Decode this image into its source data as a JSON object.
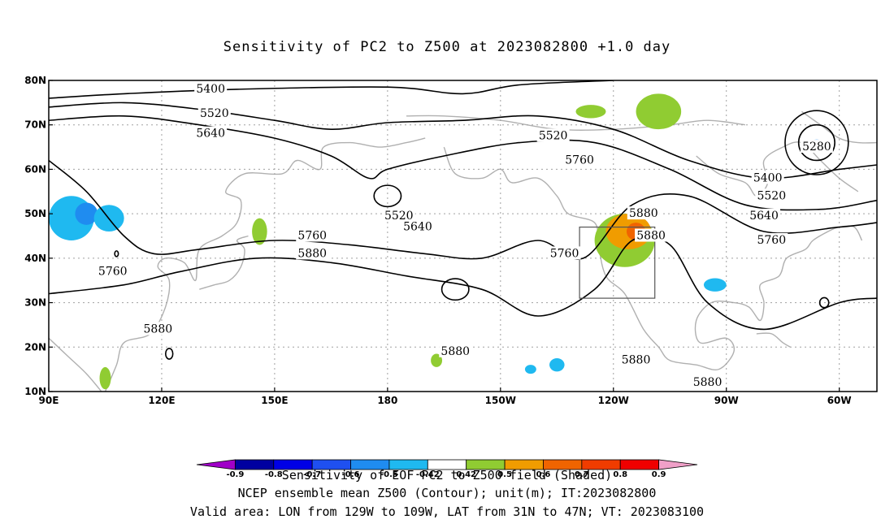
{
  "title": "Sensitivity of PC2 to Z500 at 2023082800 +1.0 day",
  "map": {
    "lon_range": [
      90,
      310
    ],
    "lat_range": [
      10,
      80
    ],
    "lat_ticks": [
      {
        "value": 80,
        "label": "80N"
      },
      {
        "value": 70,
        "label": "70N"
      },
      {
        "value": 60,
        "label": "60N"
      },
      {
        "value": 50,
        "label": "50N"
      },
      {
        "value": 40,
        "label": "40N"
      },
      {
        "value": 30,
        "label": "30N"
      },
      {
        "value": 20,
        "label": "20N"
      },
      {
        "value": 10,
        "label": "10N"
      }
    ],
    "lon_ticks": [
      {
        "value": 90,
        "label": "90E"
      },
      {
        "value": 120,
        "label": "120E"
      },
      {
        "value": 150,
        "label": "150E"
      },
      {
        "value": 180,
        "label": "180"
      },
      {
        "value": 210,
        "label": "150W"
      },
      {
        "value": 240,
        "label": "120W"
      },
      {
        "value": 270,
        "label": "90W"
      },
      {
        "value": 300,
        "label": "60W"
      }
    ],
    "valid_box": {
      "lon": [
        231,
        251
      ],
      "lat": [
        31,
        47
      ]
    },
    "contours": [
      {
        "value": 5400,
        "points": [
          [
            90,
            76
          ],
          [
            110,
            77
          ],
          [
            140,
            78
          ],
          [
            180,
            78.5
          ],
          [
            200,
            77
          ],
          [
            215,
            79
          ],
          [
            240,
            80
          ]
        ]
      },
      {
        "value": 5520,
        "points": [
          [
            90,
            74
          ],
          [
            110,
            75
          ],
          [
            130,
            73.5
          ],
          [
            150,
            71
          ],
          [
            165,
            69
          ],
          [
            180,
            70.5
          ],
          [
            200,
            71
          ],
          [
            220,
            72
          ],
          [
            240,
            69
          ],
          [
            260,
            62
          ],
          [
            280,
            58
          ],
          [
            300,
            60
          ],
          [
            310,
            61
          ]
        ]
      },
      {
        "value": 5640,
        "points": [
          [
            90,
            71
          ],
          [
            110,
            72
          ],
          [
            130,
            70
          ],
          [
            150,
            67
          ],
          [
            165,
            63
          ],
          [
            175,
            58
          ],
          [
            180,
            60
          ],
          [
            195,
            63
          ],
          [
            215,
            66
          ],
          [
            235,
            66
          ],
          [
            255,
            60
          ],
          [
            275,
            52
          ],
          [
            295,
            51
          ],
          [
            310,
            53
          ]
        ]
      },
      {
        "value": 5760,
        "points": [
          [
            90,
            62
          ],
          [
            100,
            55
          ],
          [
            110,
            45
          ],
          [
            118,
            41
          ],
          [
            130,
            42
          ],
          [
            150,
            44
          ],
          [
            170,
            43
          ],
          [
            190,
            41
          ],
          [
            205,
            40
          ],
          [
            220,
            44
          ],
          [
            232,
            40
          ],
          [
            245,
            52
          ],
          [
            260,
            54
          ],
          [
            280,
            46
          ],
          [
            300,
            47
          ],
          [
            310,
            48
          ]
        ]
      },
      {
        "value": 5880,
        "points": [
          [
            90,
            32
          ],
          [
            110,
            34
          ],
          [
            125,
            37
          ],
          [
            145,
            40
          ],
          [
            165,
            39
          ],
          [
            185,
            36
          ],
          [
            205,
            33
          ],
          [
            220,
            27
          ],
          [
            235,
            33
          ],
          [
            245,
            44
          ],
          [
            255,
            43
          ],
          [
            265,
            30
          ],
          [
            280,
            24
          ],
          [
            300,
            30
          ],
          [
            310,
            31
          ]
        ]
      }
    ],
    "contour_labels": [
      {
        "text": "5400",
        "lon": 133,
        "lat": 78
      },
      {
        "text": "5520",
        "lon": 134,
        "lat": 72.5
      },
      {
        "text": "5640",
        "lon": 133,
        "lat": 68
      },
      {
        "text": "5520",
        "lon": 224,
        "lat": 67.5
      },
      {
        "text": "5280",
        "lon": 294,
        "lat": 65
      },
      {
        "text": "5760",
        "lon": 231,
        "lat": 62
      },
      {
        "text": "5400",
        "lon": 281,
        "lat": 58
      },
      {
        "text": "5520",
        "lon": 282,
        "lat": 54
      },
      {
        "text": "5640",
        "lon": 280,
        "lat": 49.5
      },
      {
        "text": "5520",
        "lon": 183,
        "lat": 49.5
      },
      {
        "text": "5640",
        "lon": 188,
        "lat": 47
      },
      {
        "text": "5880",
        "lon": 248,
        "lat": 50
      },
      {
        "text": "5880",
        "lon": 250,
        "lat": 45
      },
      {
        "text": "5760",
        "lon": 160,
        "lat": 45
      },
      {
        "text": "5760",
        "lon": 282,
        "lat": 44
      },
      {
        "text": "5880",
        "lon": 160,
        "lat": 41
      },
      {
        "text": "5760",
        "lon": 227,
        "lat": 41
      },
      {
        "text": "5760",
        "lon": 107,
        "lat": 37
      },
      {
        "text": "5880",
        "lon": 119,
        "lat": 24
      },
      {
        "text": "5880",
        "lon": 198,
        "lat": 19
      },
      {
        "text": "5880",
        "lon": 246,
        "lat": 17
      },
      {
        "text": "5880",
        "lon": 265,
        "lat": 12
      }
    ],
    "shaded_patches": [
      {
        "color": "#1fb9f0",
        "lon": 96,
        "lat": 49,
        "rx": 6,
        "ry": 5
      },
      {
        "color": "#1f8cf0",
        "lon": 100,
        "lat": 50,
        "rx": 3,
        "ry": 2.5
      },
      {
        "color": "#1fb9f0",
        "lon": 106,
        "lat": 49,
        "rx": 4,
        "ry": 3
      },
      {
        "color": "#90cc32",
        "lon": 252,
        "lat": 73,
        "rx": 6,
        "ry": 4
      },
      {
        "color": "#90cc32",
        "lon": 234,
        "lat": 73,
        "rx": 4,
        "ry": 1.5
      },
      {
        "color": "#90cc32",
        "lon": 243,
        "lat": 44,
        "rx": 8,
        "ry": 6
      },
      {
        "color": "#f09c00",
        "lon": 244,
        "lat": 46,
        "rx": 6,
        "ry": 4
      },
      {
        "color": "#f06400",
        "lon": 246,
        "lat": 46,
        "rx": 2.5,
        "ry": 2
      },
      {
        "color": "#90cc32",
        "lon": 146,
        "lat": 46,
        "rx": 2,
        "ry": 3
      },
      {
        "color": "#1fb9f0",
        "lon": 225,
        "lat": 16,
        "rx": 2,
        "ry": 1.5
      },
      {
        "color": "#1fb9f0",
        "lon": 218,
        "lat": 15,
        "rx": 1.5,
        "ry": 1
      },
      {
        "color": "#90cc32",
        "lon": 193,
        "lat": 17,
        "rx": 1.5,
        "ry": 1.5
      },
      {
        "color": "#90cc32",
        "lon": 105,
        "lat": 13,
        "rx": 1.5,
        "ry": 2.5
      },
      {
        "color": "#1fb9f0",
        "lon": 267,
        "lat": 34,
        "rx": 3,
        "ry": 1.5
      },
      {
        "color": "#1f8cf0",
        "lon": 294,
        "lat": 66,
        "rx": 1.5,
        "ry": 0.7
      }
    ]
  },
  "colorbar": {
    "colors": [
      "#a000c8",
      "#0000a0",
      "#0000e6",
      "#1f50f0",
      "#1f8cf0",
      "#1fb9f0",
      "#ffffff",
      "#90cc32",
      "#f09c00",
      "#f06400",
      "#f03c00",
      "#f00000",
      "#f0a0c8"
    ],
    "labels": [
      "-0.9",
      "-0.8",
      "-0.7",
      "-0.6",
      "-0.5",
      "-0.42",
      "0.42",
      "0.5",
      "0.6",
      "0.7",
      "0.8",
      "0.9"
    ]
  },
  "footer": {
    "caption": "Sensitivity of EOF PC2 to Z500 field (Shaded)",
    "line2": "NCEP ensemble mean Z500 (Contour); unit(m); IT:2023082800",
    "line3": "Valid area: LON from 129W to 109W, LAT from 31N to 47N; VT: 2023083100"
  }
}
